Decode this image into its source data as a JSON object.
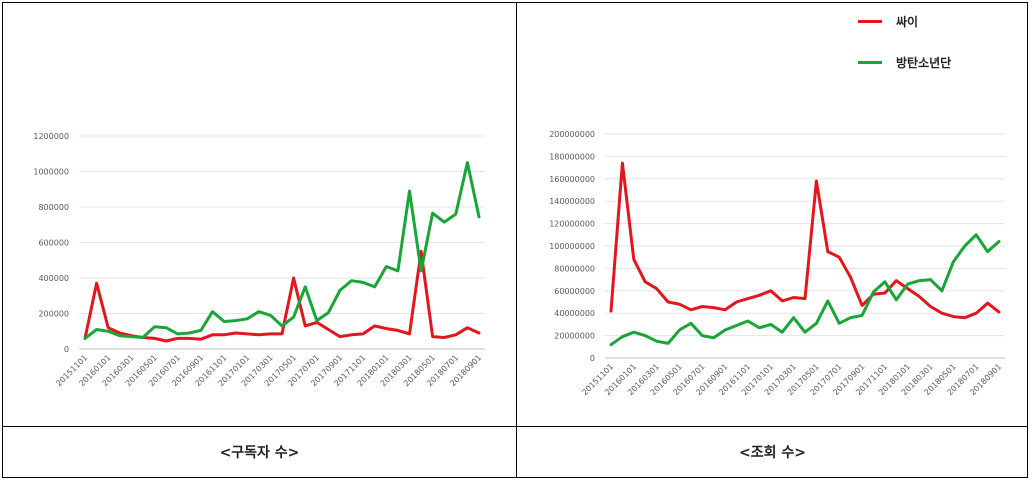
{
  "legend": [
    {
      "name": "싸이",
      "color": "#e3161e"
    },
    {
      "name": "방탄소년단",
      "color": "#1aa538"
    }
  ],
  "captions": [
    "<구독자 수>",
    "<조회 수>"
  ],
  "chart_data": [
    {
      "type": "line",
      "xlabels": [
        "20151101",
        "20160101",
        "20160301",
        "20160501",
        "20160701",
        "20160901",
        "20161101",
        "20170101",
        "20170301",
        "20170501",
        "20170701",
        "20170901",
        "20171101",
        "20180101",
        "20180301",
        "20180501",
        "20180701",
        "20180901"
      ],
      "ylim": [
        0,
        1200000
      ],
      "yticks": [
        0,
        200000,
        400000,
        600000,
        800000,
        1000000,
        1200000
      ],
      "grid": true,
      "series": [
        {
          "name": "싸이",
          "color": "#e3161e",
          "values": [
            60000,
            370000,
            120000,
            90000,
            75000,
            65000,
            60000,
            45000,
            60000,
            60000,
            55000,
            80000,
            80000,
            90000,
            85000,
            80000,
            85000,
            85000,
            400000,
            130000,
            150000,
            110000,
            70000,
            80000,
            85000,
            130000,
            115000,
            105000,
            85000,
            550000,
            70000,
            65000,
            80000,
            120000,
            90000
          ]
        },
        {
          "name": "방탄소년단",
          "color": "#1aa538",
          "values": [
            60000,
            110000,
            100000,
            75000,
            70000,
            65000,
            125000,
            120000,
            85000,
            90000,
            105000,
            210000,
            155000,
            160000,
            170000,
            210000,
            190000,
            130000,
            180000,
            350000,
            160000,
            205000,
            330000,
            385000,
            375000,
            350000,
            465000,
            440000,
            890000,
            440000,
            765000,
            715000,
            760000,
            1050000,
            745000
          ]
        }
      ]
    },
    {
      "type": "line",
      "xlabels": [
        "20151101",
        "20160101",
        "20160301",
        "20160501",
        "20160701",
        "20160901",
        "20161101",
        "20170101",
        "20170301",
        "20170501",
        "20170701",
        "20170901",
        "20171101",
        "20180101",
        "20180301",
        "20180501",
        "20180701",
        "20180901"
      ],
      "ylim": [
        0,
        200000000
      ],
      "yticks": [
        0,
        20000000,
        40000000,
        60000000,
        80000000,
        100000000,
        120000000,
        140000000,
        160000000,
        180000000,
        200000000
      ],
      "grid": true,
      "series": [
        {
          "name": "싸이",
          "color": "#e3161e",
          "values": [
            42000000,
            174000000,
            88000000,
            68000000,
            62000000,
            50000000,
            48000000,
            43000000,
            46000000,
            45000000,
            43000000,
            50000000,
            53000000,
            56000000,
            60000000,
            51000000,
            54000000,
            53000000,
            158000000,
            95000000,
            90000000,
            72000000,
            47000000,
            57000000,
            58000000,
            69000000,
            62000000,
            55000000,
            46000000,
            40000000,
            37000000,
            36000000,
            40000000,
            49000000,
            41000000
          ]
        },
        {
          "name": "방탄소년단",
          "color": "#1aa538",
          "values": [
            12000000,
            19000000,
            23000000,
            20000000,
            15000000,
            13000000,
            25000000,
            31000000,
            20000000,
            18000000,
            25000000,
            29000000,
            33000000,
            27000000,
            30000000,
            23000000,
            36000000,
            23000000,
            31000000,
            51000000,
            31000000,
            36000000,
            38000000,
            59000000,
            68000000,
            52000000,
            66000000,
            69000000,
            70000000,
            60000000,
            86000000,
            100000000,
            110000000,
            95000000,
            104000000
          ]
        }
      ]
    }
  ]
}
